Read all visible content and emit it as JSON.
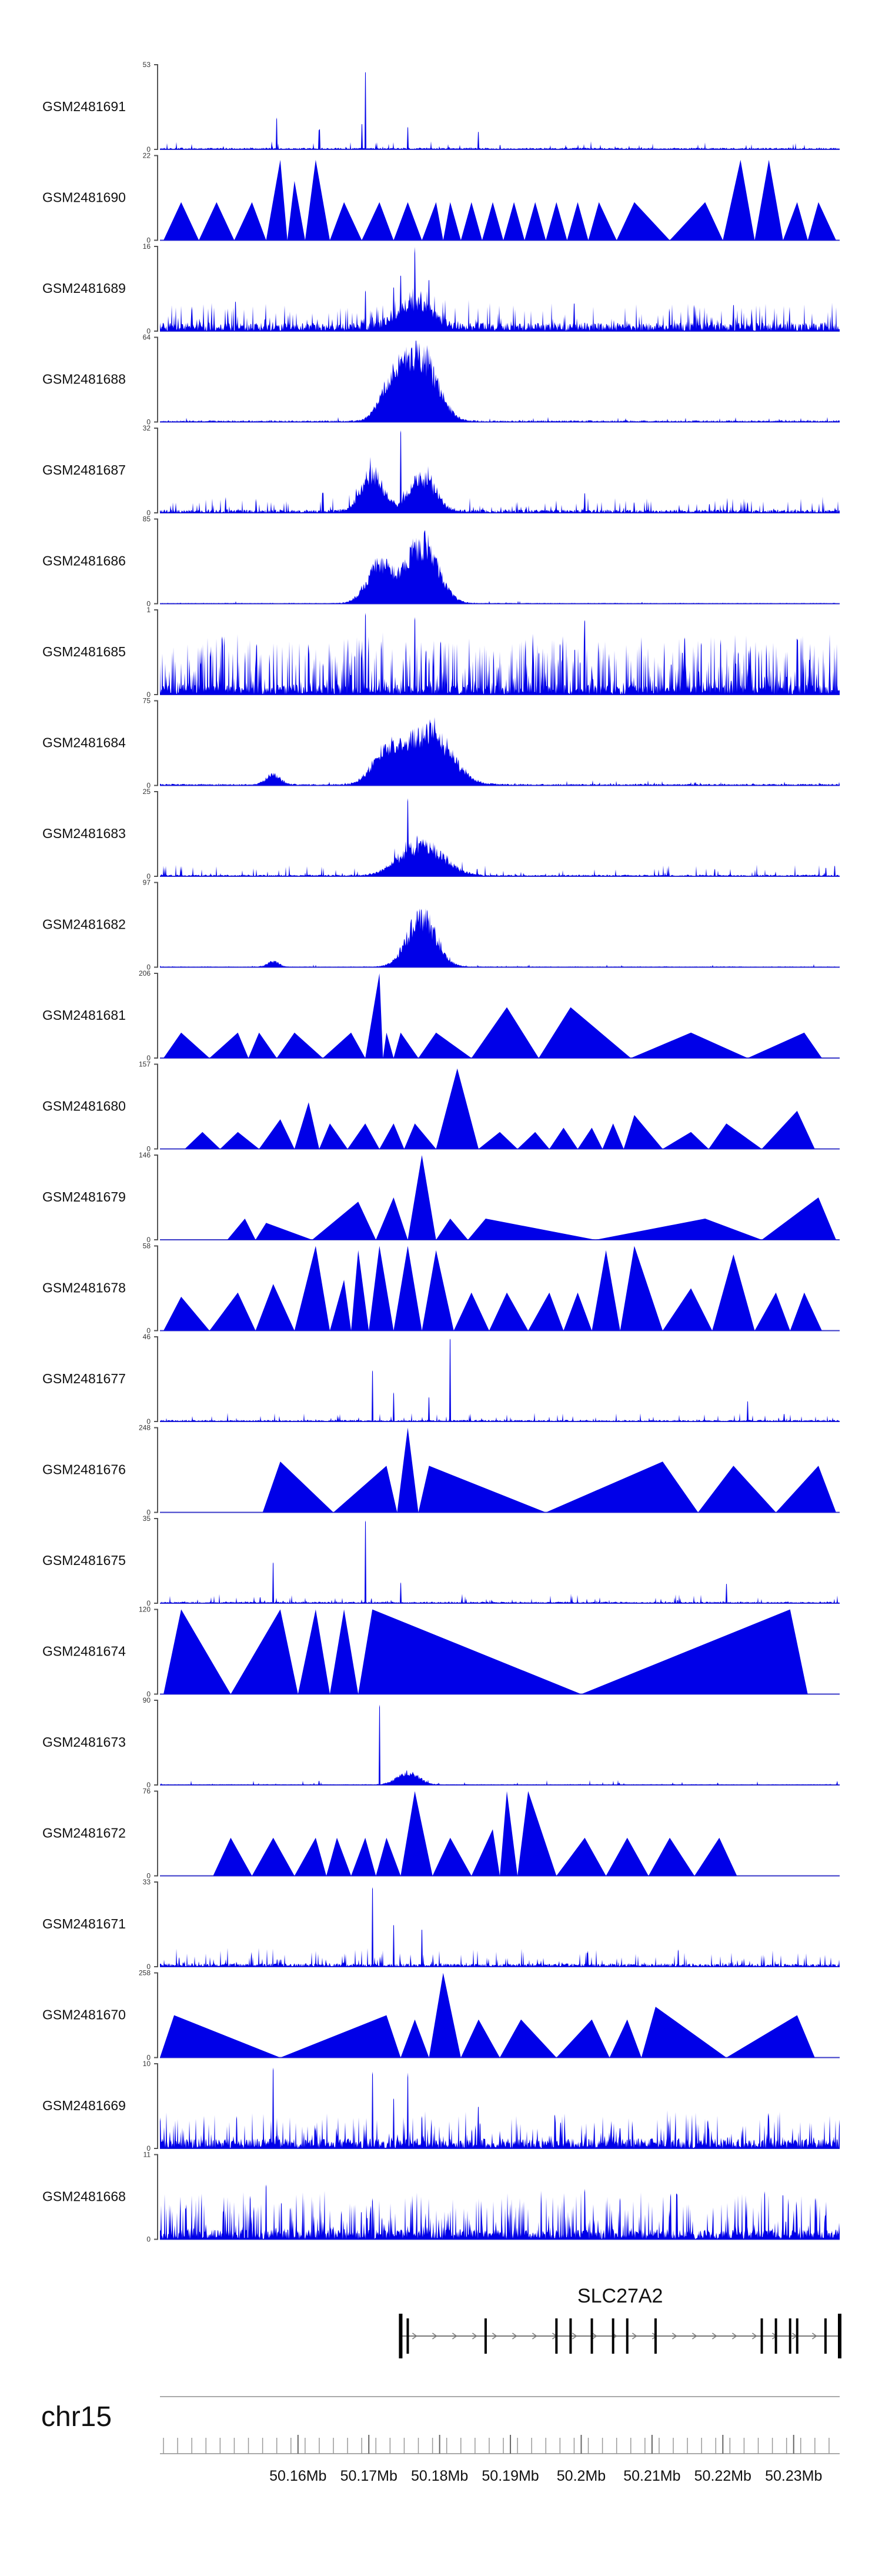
{
  "chart_data": {
    "type": "area",
    "title": "",
    "chromosome": "chr15",
    "xlim": [
      50.1405,
      50.2365
    ],
    "x_ticks": [
      {
        "value": 50.16,
        "label": "50.16Mb"
      },
      {
        "value": 50.17,
        "label": "50.17Mb"
      },
      {
        "value": 50.18,
        "label": "50.18Mb"
      },
      {
        "value": 50.19,
        "label": "50.19Mb"
      },
      {
        "value": 50.2,
        "label": "50.2Mb"
      },
      {
        "value": 50.21,
        "label": "50.21Mb"
      },
      {
        "value": 50.22,
        "label": "50.22Mb"
      },
      {
        "value": 50.23,
        "label": "50.23Mb"
      }
    ],
    "tracks": [
      {
        "name": "GSM2481691",
        "ymax": 53,
        "ymax_label": "53",
        "style": "noise",
        "base": 2,
        "noise": 5,
        "spikes": [
          [
            50.157,
            0.38
          ],
          [
            50.163,
            0.25
          ],
          [
            50.169,
            0.3
          ],
          [
            50.1695,
            1.0
          ],
          [
            50.1755,
            0.28
          ],
          [
            50.1855,
            0.22
          ]
        ],
        "bumps": []
      },
      {
        "name": "GSM2481690",
        "ymax": 22,
        "ymax_label": "22",
        "style": "tri",
        "peaks": [
          [
            50.1435,
            0.45
          ],
          [
            50.1485,
            0.45
          ],
          [
            50.1535,
            0.45
          ],
          [
            50.1575,
            0.95
          ],
          [
            50.1595,
            0.7
          ],
          [
            50.1625,
            0.95
          ],
          [
            50.1665,
            0.45
          ],
          [
            50.1715,
            0.45
          ],
          [
            50.1755,
            0.45
          ],
          [
            50.1795,
            0.45
          ],
          [
            50.1815,
            0.45
          ],
          [
            50.1845,
            0.45
          ],
          [
            50.1875,
            0.45
          ],
          [
            50.1905,
            0.45
          ],
          [
            50.1935,
            0.45
          ],
          [
            50.1965,
            0.45
          ],
          [
            50.1995,
            0.45
          ],
          [
            50.2025,
            0.45
          ],
          [
            50.2075,
            0.45
          ],
          [
            50.2175,
            0.45
          ],
          [
            50.2225,
            0.95
          ],
          [
            50.2265,
            0.95
          ],
          [
            50.2305,
            0.45
          ],
          [
            50.2335,
            0.45
          ]
        ]
      },
      {
        "name": "GSM2481689",
        "ymax": 16,
        "ymax_label": "16",
        "style": "noise",
        "base": 10,
        "noise": 18,
        "spikes": [
          [
            50.1765,
            1.0
          ],
          [
            50.1745,
            0.7
          ],
          [
            50.1785,
            0.65
          ],
          [
            50.1735,
            0.55
          ],
          [
            50.1695,
            0.5
          ]
        ],
        "bumps": [
          [
            50.1765,
            0.0025,
            0.35
          ]
        ]
      },
      {
        "name": "GSM2481688",
        "ymax": 64,
        "ymax_label": "64",
        "style": "noise",
        "base": 2,
        "noise": 3,
        "spikes": [],
        "bumps": [
          [
            50.1735,
            0.0018,
            0.55
          ],
          [
            50.1775,
            0.0022,
            0.95
          ]
        ]
      },
      {
        "name": "GSM2481687",
        "ymax": 32,
        "ymax_label": "32",
        "style": "noise",
        "base": 4,
        "noise": 10,
        "spikes": [
          [
            50.1745,
            1.0
          ],
          [
            50.1635,
            0.25
          ],
          [
            50.2005,
            0.25
          ]
        ],
        "bumps": [
          [
            50.1705,
            0.0015,
            0.55
          ],
          [
            50.1775,
            0.0018,
            0.5
          ]
        ]
      },
      {
        "name": "GSM2481686",
        "ymax": 85,
        "ymax_label": "85",
        "style": "noise",
        "base": 1,
        "noise": 2,
        "spikes": [],
        "bumps": [
          [
            50.1715,
            0.0018,
            0.55
          ],
          [
            50.1775,
            0.0022,
            0.9
          ]
        ]
      },
      {
        "name": "GSM2481685",
        "ymax": 1,
        "ymax_label": "1",
        "style": "noise",
        "base": 12,
        "noise": 40,
        "spikes": [
          [
            50.1695,
            1.0
          ],
          [
            50.1765,
            0.95
          ],
          [
            50.2005,
            0.95
          ],
          [
            50.2305,
            0.7
          ],
          [
            50.1615,
            0.6
          ]
        ],
        "bumps": []
      },
      {
        "name": "GSM2481684",
        "ymax": 75,
        "ymax_label": "75",
        "style": "noise",
        "base": 2,
        "noise": 3,
        "spikes": [],
        "bumps": [
          [
            50.1565,
            0.001,
            0.15
          ],
          [
            50.1725,
            0.002,
            0.45
          ],
          [
            50.1785,
            0.003,
            0.8
          ]
        ]
      },
      {
        "name": "GSM2481683",
        "ymax": 25,
        "ymax_label": "25",
        "style": "noise",
        "base": 2,
        "noise": 8,
        "spikes": [
          [
            50.1755,
            0.95
          ]
        ],
        "bumps": [
          [
            50.1775,
            0.003,
            0.45
          ]
        ]
      },
      {
        "name": "GSM2481682",
        "ymax": 97,
        "ymax_label": "97",
        "style": "noise",
        "base": 1,
        "noise": 2,
        "spikes": [],
        "bumps": [
          [
            50.1565,
            0.0008,
            0.08
          ],
          [
            50.1775,
            0.002,
            0.75
          ]
        ]
      },
      {
        "name": "GSM2481681",
        "ymax": 206,
        "ymax_label": "206",
        "style": "tri",
        "peaks": [
          [
            50.1435,
            0.3
          ],
          [
            50.1515,
            0.3
          ],
          [
            50.1545,
            0.3
          ],
          [
            50.1595,
            0.3
          ],
          [
            50.1675,
            0.3
          ],
          [
            50.1715,
            1.0
          ],
          [
            50.1725,
            0.3
          ],
          [
            50.1745,
            0.3
          ],
          [
            50.1795,
            0.3
          ],
          [
            50.1895,
            0.6
          ],
          [
            50.1985,
            0.6
          ],
          [
            50.2155,
            0.3
          ],
          [
            50.2315,
            0.3
          ]
        ]
      },
      {
        "name": "GSM2481680",
        "ymax": 157,
        "ymax_label": "157",
        "style": "tri",
        "peaks": [
          [
            50.1465,
            0.2
          ],
          [
            50.1515,
            0.2
          ],
          [
            50.1575,
            0.35
          ],
          [
            50.1615,
            0.55
          ],
          [
            50.1645,
            0.3
          ],
          [
            50.1695,
            0.3
          ],
          [
            50.1735,
            0.3
          ],
          [
            50.1765,
            0.3
          ],
          [
            50.1825,
            0.95
          ],
          [
            50.1885,
            0.2
          ],
          [
            50.1935,
            0.2
          ],
          [
            50.1975,
            0.25
          ],
          [
            50.2015,
            0.25
          ],
          [
            50.2045,
            0.3
          ],
          [
            50.2075,
            0.4
          ],
          [
            50.2155,
            0.2
          ],
          [
            50.2205,
            0.3
          ],
          [
            50.2305,
            0.45
          ]
        ]
      },
      {
        "name": "GSM2481679",
        "ymax": 146,
        "ymax_label": "146",
        "style": "tri",
        "peaks": [
          [
            50.1525,
            0.25
          ],
          [
            50.1555,
            0.2
          ],
          [
            50.1685,
            0.45
          ],
          [
            50.1735,
            0.5
          ],
          [
            50.1775,
            1.0
          ],
          [
            50.1815,
            0.25
          ],
          [
            50.1865,
            0.25
          ],
          [
            50.2175,
            0.25
          ],
          [
            50.2335,
            0.5
          ]
        ]
      },
      {
        "name": "GSM2481678",
        "ymax": 58,
        "ymax_label": "58",
        "style": "tri",
        "peaks": [
          [
            50.1435,
            0.4
          ],
          [
            50.1515,
            0.45
          ],
          [
            50.1565,
            0.55
          ],
          [
            50.1625,
            1.0
          ],
          [
            50.1665,
            0.6
          ],
          [
            50.1685,
            0.95
          ],
          [
            50.1715,
            1.0
          ],
          [
            50.1755,
            1.0
          ],
          [
            50.1795,
            0.95
          ],
          [
            50.1845,
            0.45
          ],
          [
            50.1895,
            0.45
          ],
          [
            50.1955,
            0.45
          ],
          [
            50.1995,
            0.45
          ],
          [
            50.2035,
            0.95
          ],
          [
            50.2075,
            1.0
          ],
          [
            50.2155,
            0.5
          ],
          [
            50.2215,
            0.9
          ],
          [
            50.2275,
            0.45
          ],
          [
            50.2315,
            0.45
          ]
        ]
      },
      {
        "name": "GSM2481677",
        "ymax": 46,
        "ymax_label": "46",
        "style": "noise",
        "base": 2,
        "noise": 6,
        "spikes": [
          [
            50.1705,
            0.65
          ],
          [
            50.1815,
            1.0
          ],
          [
            50.1735,
            0.35
          ],
          [
            50.1785,
            0.3
          ],
          [
            50.2235,
            0.25
          ]
        ],
        "bumps": []
      },
      {
        "name": "GSM2481676",
        "ymax": 248,
        "ymax_label": "248",
        "style": "tri",
        "peaks": [
          [
            50.1575,
            0.6
          ],
          [
            50.1725,
            0.55
          ],
          [
            50.1755,
            1.0
          ],
          [
            50.1785,
            0.55
          ],
          [
            50.2115,
            0.6
          ],
          [
            50.2215,
            0.55
          ],
          [
            50.2335,
            0.55
          ]
        ]
      },
      {
        "name": "GSM2481675",
        "ymax": 35,
        "ymax_label": "35",
        "style": "noise",
        "base": 2,
        "noise": 6,
        "spikes": [
          [
            50.1695,
            1.0
          ],
          [
            50.1565,
            0.5
          ],
          [
            50.1745,
            0.25
          ],
          [
            50.2205,
            0.25
          ]
        ],
        "bumps": []
      },
      {
        "name": "GSM2481674",
        "ymax": 120,
        "ymax_label": "120",
        "style": "tri",
        "peaks": [
          [
            50.1435,
            1.0
          ],
          [
            50.1575,
            1.0
          ],
          [
            50.1625,
            1.0
          ],
          [
            50.1665,
            1.0
          ],
          [
            50.1705,
            1.0
          ],
          [
            50.2295,
            1.0
          ]
        ]
      },
      {
        "name": "GSM2481673",
        "ymax": 90,
        "ymax_label": "90",
        "style": "noise",
        "base": 1,
        "noise": 3,
        "spikes": [
          [
            50.1715,
            1.0
          ]
        ],
        "bumps": [
          [
            50.1755,
            0.0015,
            0.18
          ]
        ]
      },
      {
        "name": "GSM2481672",
        "ymax": 76,
        "ymax_label": "76",
        "style": "tri",
        "peaks": [
          [
            50.1505,
            0.45
          ],
          [
            50.1565,
            0.45
          ],
          [
            50.1625,
            0.45
          ],
          [
            50.1655,
            0.45
          ],
          [
            50.1695,
            0.45
          ],
          [
            50.1725,
            0.45
          ],
          [
            50.1765,
            1.0
          ],
          [
            50.1815,
            0.45
          ],
          [
            50.1875,
            0.55
          ],
          [
            50.1895,
            1.0
          ],
          [
            50.1925,
            1.0
          ],
          [
            50.2005,
            0.45
          ],
          [
            50.2065,
            0.45
          ],
          [
            50.2125,
            0.45
          ],
          [
            50.2195,
            0.45
          ]
        ]
      },
      {
        "name": "GSM2481671",
        "ymax": 33,
        "ymax_label": "33",
        "style": "noise",
        "base": 4,
        "noise": 12,
        "spikes": [
          [
            50.1705,
            1.0
          ],
          [
            50.1735,
            0.5
          ],
          [
            50.1775,
            0.45
          ]
        ],
        "bumps": []
      },
      {
        "name": "GSM2481670",
        "ymax": 258,
        "ymax_label": "258",
        "style": "tri",
        "peaks": [
          [
            50.1425,
            0.5
          ],
          [
            50.1725,
            0.5
          ],
          [
            50.1765,
            0.45
          ],
          [
            50.1805,
            1.0
          ],
          [
            50.1855,
            0.45
          ],
          [
            50.1915,
            0.45
          ],
          [
            50.2015,
            0.45
          ],
          [
            50.2065,
            0.45
          ],
          [
            50.2105,
            0.6
          ],
          [
            50.2305,
            0.5
          ]
        ]
      },
      {
        "name": "GSM2481669",
        "ymax": 10,
        "ymax_label": "10",
        "style": "noise",
        "base": 12,
        "noise": 22,
        "spikes": [
          [
            50.1565,
            1.0
          ],
          [
            50.1705,
            0.95
          ],
          [
            50.1755,
            0.9
          ],
          [
            50.1735,
            0.6
          ],
          [
            50.1855,
            0.5
          ]
        ],
        "bumps": []
      },
      {
        "name": "GSM2481668",
        "ymax": 11,
        "ymax_label": "11",
        "style": "noise",
        "base": 12,
        "noise": 30,
        "spikes": [
          [
            50.1555,
            0.65
          ],
          [
            50.2005,
            0.6
          ],
          [
            50.2135,
            0.55
          ],
          [
            50.2055,
            0.5
          ],
          [
            50.2285,
            0.55
          ]
        ],
        "bumps": []
      }
    ],
    "gene": {
      "name": "SLC27A2",
      "start": 50.1745,
      "end": 50.2365,
      "exons": [
        50.1745,
        50.1755,
        50.1865,
        50.1965,
        50.1985,
        50.2015,
        50.2045,
        50.2065,
        50.2105,
        50.2255,
        50.2275,
        50.2295,
        50.2305,
        50.2345,
        50.2365
      ]
    }
  }
}
